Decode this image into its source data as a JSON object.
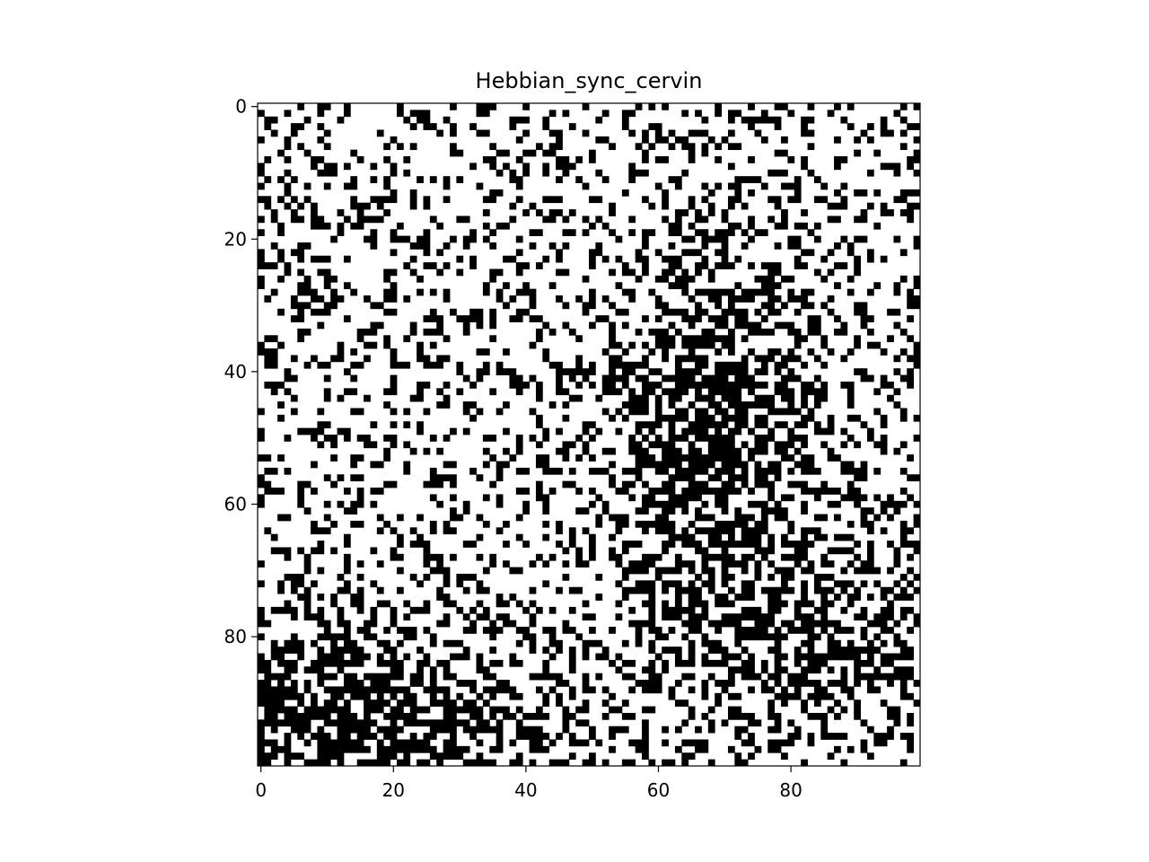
{
  "chart_data": {
    "type": "heatmap",
    "title": "Hebbian_sync_cervin",
    "xlabel": "",
    "ylabel": "",
    "grid": false,
    "colormap": "binary",
    "rows": 100,
    "cols": 100,
    "xlim": [
      -0.5,
      99.5
    ],
    "ylim": [
      99.5,
      -0.5
    ],
    "x_ticks": [
      0,
      20,
      40,
      60,
      80
    ],
    "y_ticks": [
      0,
      20,
      40,
      60,
      80
    ],
    "x_tick_labels": [
      "0",
      "20",
      "40",
      "60",
      "80"
    ],
    "y_tick_labels": [
      "0",
      "20",
      "40",
      "60",
      "80"
    ],
    "values_description": "binary 0/1 grid; black density rises toward bottom-left and center-right (approximate reconstruction)",
    "colors": {
      "on": "#000000",
      "off": "#ffffff"
    }
  }
}
